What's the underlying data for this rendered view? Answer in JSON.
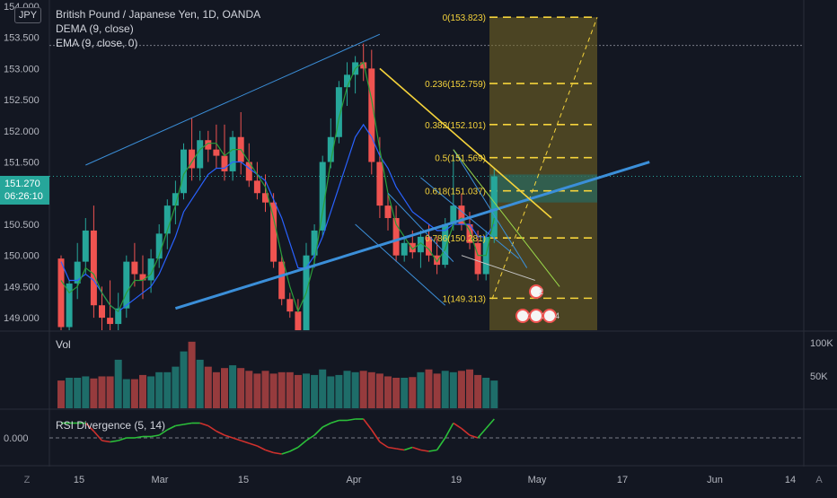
{
  "symbol_badge": "JPY",
  "legend": {
    "title": "British Pound / Japanese Yen, 1D, OANDA",
    "ind1": "DEMA (9, close)",
    "ind2": "EMA (9, close, 0)"
  },
  "price_axis": {
    "ticks": [
      "154.000",
      "153.500",
      "153.000",
      "152.500",
      "152.000",
      "151.500",
      "151.000",
      "150.500",
      "150.000",
      "149.500",
      "149.000"
    ],
    "current_price": "151.270",
    "countdown": "06:26:10"
  },
  "volume_pane": {
    "label": "Vol",
    "ticks": [
      "100K",
      "50K"
    ]
  },
  "rsi_pane": {
    "label": "RSI Divergence (5, 14)",
    "ticks": [
      "0.000"
    ]
  },
  "time_axis": [
    "15",
    "Mar",
    "15",
    "Apr",
    "19",
    "May",
    "17",
    "Jun",
    "14"
  ],
  "corner_buttons": {
    "left": "Z",
    "right": "A"
  },
  "fib_labels": [
    "0(153.823)",
    "0.236(152.759)",
    "0.382(152.101)",
    "0.5(151.569)",
    "0.618(151.037)",
    "0.786(150.281)",
    "1(149.313)"
  ],
  "event_badges": [
    "2",
    "9",
    "2",
    "4"
  ],
  "colors": {
    "up": "#26a69a",
    "down": "#ef5350",
    "dema": "#2a9d3a",
    "ema": "#2962ff",
    "fib": "#f5d33b",
    "fib_zone": "#7a6a25",
    "trend_line": "#3b8fd9"
  },
  "chart_data": {
    "type": "candlestick",
    "price_scale": {
      "min": 148.8,
      "max": 154.1
    },
    "candles": [
      {
        "o": 149.95,
        "h": 150.0,
        "l": 148.7,
        "c": 148.85
      },
      {
        "o": 148.85,
        "h": 149.6,
        "l": 148.8,
        "c": 149.55
      },
      {
        "o": 149.55,
        "h": 150.2,
        "l": 149.3,
        "c": 149.9
      },
      {
        "o": 149.9,
        "h": 150.6,
        "l": 149.7,
        "c": 150.4
      },
      {
        "o": 150.4,
        "h": 150.8,
        "l": 149.0,
        "c": 149.2
      },
      {
        "o": 149.2,
        "h": 149.5,
        "l": 148.8,
        "c": 149.0
      },
      {
        "o": 149.0,
        "h": 149.6,
        "l": 148.7,
        "c": 148.9
      },
      {
        "o": 148.9,
        "h": 149.4,
        "l": 148.7,
        "c": 149.15
      },
      {
        "o": 149.15,
        "h": 150.0,
        "l": 149.0,
        "c": 149.9
      },
      {
        "o": 149.9,
        "h": 150.2,
        "l": 149.5,
        "c": 149.7
      },
      {
        "o": 149.7,
        "h": 150.0,
        "l": 149.3,
        "c": 149.6
      },
      {
        "o": 149.6,
        "h": 150.1,
        "l": 149.4,
        "c": 149.95
      },
      {
        "o": 149.95,
        "h": 150.5,
        "l": 149.8,
        "c": 150.35
      },
      {
        "o": 150.35,
        "h": 150.9,
        "l": 150.1,
        "c": 150.8
      },
      {
        "o": 150.8,
        "h": 151.2,
        "l": 150.5,
        "c": 151.0
      },
      {
        "o": 151.0,
        "h": 151.8,
        "l": 150.9,
        "c": 151.7
      },
      {
        "o": 151.7,
        "h": 152.2,
        "l": 151.2,
        "c": 151.4
      },
      {
        "o": 151.4,
        "h": 152.0,
        "l": 151.2,
        "c": 151.85
      },
      {
        "o": 151.85,
        "h": 152.0,
        "l": 151.5,
        "c": 151.7
      },
      {
        "o": 151.7,
        "h": 152.1,
        "l": 151.4,
        "c": 151.6
      },
      {
        "o": 151.6,
        "h": 152.1,
        "l": 151.2,
        "c": 151.35
      },
      {
        "o": 151.35,
        "h": 152.0,
        "l": 151.2,
        "c": 151.9
      },
      {
        "o": 151.9,
        "h": 152.3,
        "l": 151.3,
        "c": 151.5
      },
      {
        "o": 151.5,
        "h": 151.8,
        "l": 151.1,
        "c": 151.2
      },
      {
        "o": 151.2,
        "h": 151.5,
        "l": 150.9,
        "c": 151.0
      },
      {
        "o": 151.0,
        "h": 151.3,
        "l": 150.7,
        "c": 150.85
      },
      {
        "o": 150.85,
        "h": 151.0,
        "l": 149.8,
        "c": 149.9
      },
      {
        "o": 149.9,
        "h": 150.0,
        "l": 149.2,
        "c": 149.3
      },
      {
        "o": 149.3,
        "h": 149.4,
        "l": 149.0,
        "c": 149.1
      },
      {
        "o": 149.1,
        "h": 149.3,
        "l": 148.7,
        "c": 148.8
      },
      {
        "o": 148.8,
        "h": 150.2,
        "l": 148.7,
        "c": 150.0
      },
      {
        "o": 150.0,
        "h": 150.5,
        "l": 149.8,
        "c": 150.4
      },
      {
        "o": 150.4,
        "h": 151.6,
        "l": 150.3,
        "c": 151.5
      },
      {
        "o": 151.5,
        "h": 152.2,
        "l": 151.4,
        "c": 151.9
      },
      {
        "o": 151.9,
        "h": 152.8,
        "l": 151.8,
        "c": 152.7
      },
      {
        "o": 152.7,
        "h": 153.1,
        "l": 152.4,
        "c": 152.9
      },
      {
        "o": 152.9,
        "h": 153.2,
        "l": 152.6,
        "c": 153.1
      },
      {
        "o": 153.1,
        "h": 153.4,
        "l": 152.8,
        "c": 153.0
      },
      {
        "o": 153.0,
        "h": 153.3,
        "l": 151.3,
        "c": 151.5
      },
      {
        "o": 151.5,
        "h": 151.9,
        "l": 150.6,
        "c": 150.8
      },
      {
        "o": 150.8,
        "h": 151.0,
        "l": 150.4,
        "c": 150.6
      },
      {
        "o": 150.6,
        "h": 150.8,
        "l": 149.9,
        "c": 150.0
      },
      {
        "o": 150.0,
        "h": 150.3,
        "l": 149.9,
        "c": 150.2
      },
      {
        "o": 150.2,
        "h": 150.4,
        "l": 149.95,
        "c": 150.05
      },
      {
        "o": 150.05,
        "h": 150.4,
        "l": 149.8,
        "c": 150.3
      },
      {
        "o": 150.3,
        "h": 150.5,
        "l": 149.9,
        "c": 150.0
      },
      {
        "o": 150.0,
        "h": 150.3,
        "l": 149.7,
        "c": 149.85
      },
      {
        "o": 149.85,
        "h": 150.6,
        "l": 149.8,
        "c": 150.5
      },
      {
        "o": 150.5,
        "h": 151.6,
        "l": 150.4,
        "c": 150.8
      },
      {
        "o": 150.8,
        "h": 151.0,
        "l": 150.4,
        "c": 150.5
      },
      {
        "o": 150.5,
        "h": 150.7,
        "l": 150.1,
        "c": 150.2
      },
      {
        "o": 150.2,
        "h": 150.4,
        "l": 149.6,
        "c": 149.7
      },
      {
        "o": 149.7,
        "h": 150.4,
        "l": 149.6,
        "c": 150.3
      },
      {
        "o": 150.3,
        "h": 151.4,
        "l": 150.2,
        "c": 151.27
      }
    ],
    "dema": [
      149.6,
      149.4,
      149.5,
      149.8,
      149.7,
      149.4,
      149.2,
      149.1,
      149.4,
      149.6,
      149.6,
      149.7,
      150.0,
      150.4,
      150.8,
      151.3,
      151.5,
      151.7,
      151.8,
      151.8,
      151.6,
      151.7,
      151.7,
      151.5,
      151.3,
      151.1,
      150.6,
      150.0,
      149.5,
      149.1,
      149.4,
      149.9,
      150.7,
      151.5,
      152.2,
      152.7,
      153.0,
      153.1,
      152.5,
      151.7,
      151.0,
      150.5,
      150.3,
      150.1,
      150.2,
      150.1,
      149.9,
      150.1,
      150.5,
      150.6,
      150.4,
      150.0,
      150.0,
      150.6
    ],
    "ema": [
      149.9,
      149.6,
      149.6,
      149.7,
      149.6,
      149.4,
      149.2,
      149.1,
      149.2,
      149.3,
      149.4,
      149.5,
      149.7,
      150.0,
      150.3,
      150.7,
      150.9,
      151.1,
      151.3,
      151.4,
      151.4,
      151.5,
      151.5,
      151.4,
      151.3,
      151.2,
      150.9,
      150.6,
      150.2,
      149.8,
      149.8,
      150.0,
      150.3,
      150.7,
      151.1,
      151.5,
      151.9,
      152.1,
      151.9,
      151.6,
      151.4,
      151.1,
      150.9,
      150.7,
      150.6,
      150.5,
      150.4,
      150.4,
      150.5,
      150.5,
      150.5,
      150.3,
      150.3,
      150.5
    ],
    "volume": [
      40,
      44,
      44,
      46,
      43,
      46,
      46,
      70,
      42,
      42,
      48,
      46,
      52,
      52,
      60,
      82,
      96,
      70,
      60,
      52,
      58,
      62,
      58,
      54,
      50,
      54,
      50,
      52,
      52,
      48,
      50,
      48,
      56,
      46,
      48,
      54,
      52,
      54,
      52,
      50,
      46,
      44,
      44,
      45,
      52,
      56,
      50,
      54,
      52,
      54,
      56,
      48,
      44,
      40
    ],
    "volume_max": 110,
    "rsi_divergence": [
      0.55,
      0.55,
      0.55,
      0.55,
      0.25,
      -0.1,
      -0.15,
      -0.1,
      0.0,
      0.0,
      0.05,
      0.05,
      0.1,
      0.3,
      0.45,
      0.5,
      0.55,
      0.55,
      0.45,
      0.25,
      0.1,
      0.0,
      -0.1,
      -0.2,
      -0.3,
      -0.45,
      -0.55,
      -0.6,
      -0.5,
      -0.35,
      -0.1,
      0.1,
      0.4,
      0.55,
      0.65,
      0.65,
      0.7,
      0.7,
      0.3,
      -0.15,
      -0.35,
      -0.4,
      -0.45,
      -0.35,
      -0.45,
      -0.5,
      -0.45,
      0.0,
      0.55,
      0.35,
      0.1,
      0.0,
      0.35,
      0.7
    ],
    "rsi_scale": {
      "min": -1.0,
      "max": 1.0
    },
    "fib_levels": [
      153.823,
      152.759,
      152.101,
      151.569,
      151.037,
      150.281,
      149.313
    ],
    "trend_lines": [
      {
        "from": [
          3,
          151.45
        ],
        "to": [
          39,
          153.55
        ],
        "style": "channel-upper"
      },
      {
        "from": [
          14,
          149.15
        ],
        "to": [
          72,
          151.5
        ],
        "style": "main-support"
      },
      {
        "from": [
          39,
          153.0
        ],
        "to": [
          60,
          150.6
        ],
        "style": "resistance"
      },
      {
        "from": [
          48,
          151.7
        ],
        "to": [
          57,
          149.8
        ],
        "style": "channel"
      },
      {
        "from": [
          44,
          151.25
        ],
        "to": [
          56,
          149.95
        ],
        "style": "channel"
      },
      {
        "from": [
          40,
          151.0
        ],
        "to": [
          48,
          149.9
        ],
        "style": "channel"
      },
      {
        "from": [
          36,
          150.5
        ],
        "to": [
          47,
          149.2
        ],
        "style": "channel"
      }
    ]
  }
}
